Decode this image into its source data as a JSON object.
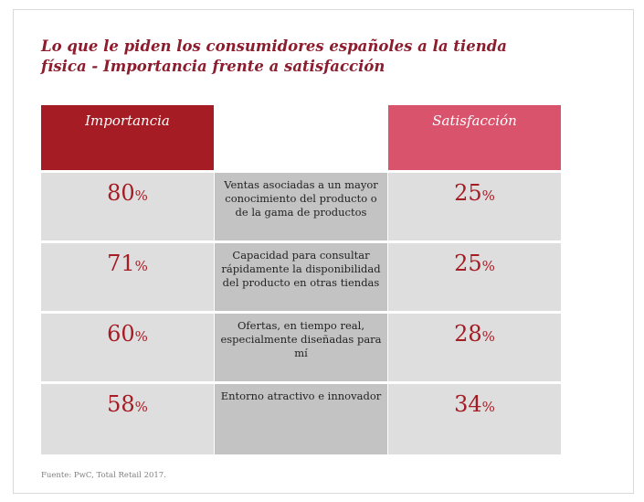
{
  "title": {
    "line1": "Lo que le piden los consumidores españoles a la tienda",
    "line2": "física - Importancia frente a satisfacción"
  },
  "headers": {
    "importance": "Importancia",
    "satisfaction": "Satisfacción"
  },
  "rows": [
    {
      "importance": "80",
      "satisfaction": "25",
      "description": "Ventas asociadas a un mayor conocimiento del producto o de la gama de productos"
    },
    {
      "importance": "71",
      "satisfaction": "25",
      "description": "Capacidad para consultar rápidamente la disponibilidad del producto en otras tiendas"
    },
    {
      "importance": "60",
      "satisfaction": "28",
      "description": "Ofertas, en tiempo real, especialmente diseñadas para mí"
    },
    {
      "importance": "58",
      "satisfaction": "34",
      "description": "Entorno atractivo e innovador"
    }
  ],
  "percent_symbol": "%",
  "source": "Fuente: PwC, Total Retail 2017.",
  "colors": {
    "title": "#8c1d2e",
    "importance_header": "#a51c24",
    "satisfaction_header": "#d9536c",
    "value_text": "#a51c24",
    "side_cell": "#dedede",
    "middle_cell": "#c3c3c3"
  }
}
